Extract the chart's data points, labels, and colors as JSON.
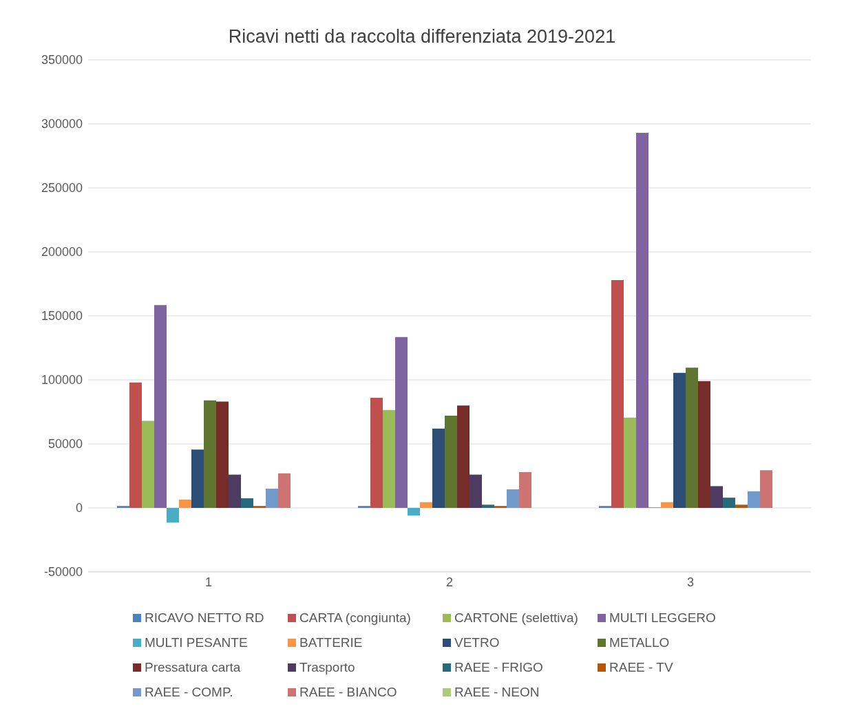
{
  "chart_data": {
    "type": "bar",
    "title": "Ricavi netti da raccolta differenziata 2019-2021",
    "categories": [
      "1",
      "2",
      "3"
    ],
    "series": [
      {
        "name": "RICAVO NETTO RD",
        "color": "#4f81bd",
        "values": [
          1500,
          1500,
          1500
        ]
      },
      {
        "name": "CARTA (congiunta)",
        "color": "#c0504d",
        "values": [
          98000,
          86000,
          178000
        ]
      },
      {
        "name": "CARTONE (selettiva)",
        "color": "#9bbb59",
        "values": [
          68000,
          76500,
          70500
        ]
      },
      {
        "name": "MULTI LEGGERO",
        "color": "#8064a2",
        "values": [
          158500,
          133500,
          293000
        ]
      },
      {
        "name": "MULTI PESANTE",
        "color": "#4bacc6",
        "values": [
          -11500,
          -6000,
          500
        ]
      },
      {
        "name": "BATTERIE",
        "color": "#f79646",
        "values": [
          6500,
          4500,
          4500
        ]
      },
      {
        "name": "VETRO",
        "color": "#2c4d75",
        "values": [
          45500,
          62000,
          105500
        ]
      },
      {
        "name": "METALLO",
        "color": "#5f7530",
        "values": [
          84000,
          72000,
          109500
        ]
      },
      {
        "name": "Pressatura carta",
        "color": "#772c2a",
        "values": [
          83000,
          80000,
          99000
        ]
      },
      {
        "name": "Trasporto",
        "color": "#4d3b62",
        "values": [
          26000,
          26000,
          17000
        ]
      },
      {
        "name": "RAEE - FRIGO",
        "color": "#276a7c",
        "values": [
          7500,
          2500,
          8000
        ]
      },
      {
        "name": "RAEE - TV",
        "color": "#b65708",
        "values": [
          1500,
          1500,
          2500
        ]
      },
      {
        "name": "RAEE - COMP.",
        "color": "#729aca",
        "values": [
          15000,
          14500,
          13000
        ]
      },
      {
        "name": "RAEE - BIANCO",
        "color": "#cd7372",
        "values": [
          27000,
          28000,
          29500
        ]
      },
      {
        "name": "RAEE - NEON",
        "color": "#afc97a",
        "values": [
          0,
          0,
          0
        ]
      }
    ],
    "ylim": [
      -50000,
      350000
    ],
    "yticks": [
      -50000,
      0,
      50000,
      100000,
      150000,
      200000,
      250000,
      300000,
      350000
    ],
    "grid": "y",
    "legend": "bottom"
  }
}
